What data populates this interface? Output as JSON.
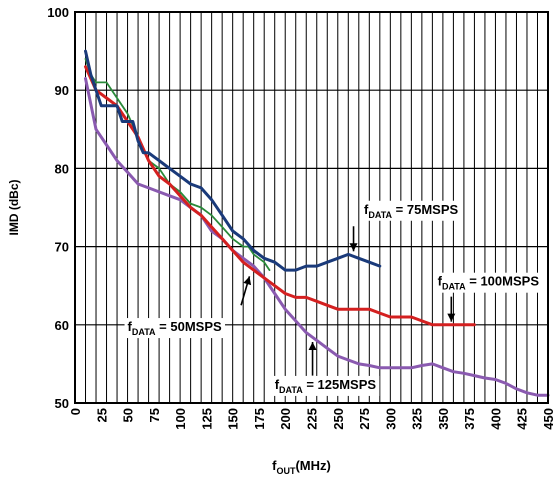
{
  "chart_data": {
    "type": "line",
    "xlabel": "f",
    "xlabel_sub": "OUT",
    "xlabel_unit": "(MHz)",
    "ylabel": "IMD (dBc)",
    "xlim": [
      0,
      450
    ],
    "ylim": [
      50,
      100
    ],
    "grid": true,
    "xticks": [
      "0",
      "25",
      "50",
      "75",
      "100",
      "125",
      "150",
      "175",
      "200",
      "225",
      "250",
      "275",
      "300",
      "325",
      "350",
      "375",
      "400",
      "425",
      "450"
    ],
    "yticks": [
      "50",
      "60",
      "70",
      "80",
      "90",
      "100"
    ],
    "series": [
      {
        "name": "fDATA = 75MSPS",
        "label_main": "f",
        "label_sub": "DATA",
        "label_rest": " = 75MSPS",
        "color": "#1a3a7a",
        "x": [
          10,
          15,
          20,
          25,
          30,
          35,
          40,
          45,
          50,
          55,
          60,
          65,
          70,
          75,
          80,
          85,
          90,
          100,
          110,
          120,
          130,
          140,
          150,
          160,
          170,
          180,
          190,
          200,
          210,
          220,
          230,
          240,
          250,
          260,
          270,
          280,
          290
        ],
        "y": [
          95,
          92,
          90,
          88,
          88,
          88,
          88,
          86,
          86,
          86,
          83.5,
          82,
          82,
          81.5,
          81,
          80.5,
          80,
          79,
          78,
          77.5,
          76,
          74,
          72,
          71,
          69.5,
          68.5,
          68,
          67,
          67,
          67.5,
          67.5,
          68,
          68.5,
          69,
          68.5,
          68,
          67.5
        ]
      },
      {
        "name": "fDATA = 100MSPS",
        "label_main": "f",
        "label_sub": "DATA",
        "label_rest": " = 100MSPS",
        "color": "#d42020",
        "x": [
          10,
          20,
          30,
          40,
          50,
          60,
          70,
          80,
          90,
          100,
          110,
          120,
          130,
          140,
          150,
          160,
          170,
          180,
          190,
          200,
          210,
          220,
          230,
          240,
          250,
          260,
          270,
          280,
          290,
          300,
          310,
          320,
          330,
          340,
          350,
          360,
          370,
          380
        ],
        "y": [
          93,
          90,
          89,
          88,
          86,
          84,
          81,
          79,
          78,
          76.5,
          75,
          74,
          72.5,
          71,
          69.5,
          68,
          67,
          66,
          65,
          64,
          63.5,
          63.5,
          63,
          62.5,
          62,
          62,
          62,
          62,
          61.5,
          61,
          61,
          61,
          60.5,
          60,
          60,
          60,
          60,
          60
        ]
      },
      {
        "name": "fDATA = 50MSPS",
        "label_main": "f",
        "label_sub": "DATA",
        "label_rest": " = 50MSPS",
        "color": "#2a8a3a",
        "x": [
          10,
          15,
          20,
          25,
          30,
          35,
          40,
          50,
          60,
          70,
          80,
          90,
          100,
          110,
          120,
          130,
          140,
          150,
          160,
          165,
          170,
          175,
          180,
          185
        ],
        "y": [
          94,
          92,
          91,
          91,
          91,
          90,
          89,
          87,
          84,
          81,
          80,
          78,
          77,
          75.5,
          75,
          74,
          72.5,
          71,
          70,
          70,
          69,
          68.5,
          68,
          67
        ]
      },
      {
        "name": "fDATA = 125MSPS",
        "label_main": "f",
        "label_sub": "DATA",
        "label_rest": " = 125MSPS",
        "color": "#8a5ab0",
        "x": [
          10,
          20,
          30,
          40,
          50,
          60,
          70,
          80,
          90,
          100,
          110,
          120,
          130,
          140,
          150,
          160,
          170,
          180,
          190,
          200,
          210,
          220,
          230,
          240,
          250,
          260,
          270,
          280,
          290,
          300,
          310,
          320,
          330,
          340,
          350,
          360,
          370,
          380,
          390,
          400,
          410,
          420,
          430,
          440,
          450
        ],
        "y": [
          91.5,
          85,
          83,
          81,
          79.5,
          78,
          77.5,
          77,
          76.5,
          76,
          75,
          74,
          72,
          71,
          69.5,
          68.5,
          67.5,
          66,
          64,
          62,
          60.5,
          59,
          58,
          57,
          56,
          55.5,
          55,
          54.8,
          54.5,
          54.5,
          54.5,
          54.5,
          54.8,
          55,
          54.5,
          54,
          53.8,
          53.5,
          53.2,
          53,
          52.5,
          51.8,
          51.3,
          51,
          51
        ]
      }
    ],
    "annotations": [
      {
        "series": 0,
        "text_x": 275,
        "text_y": 74.2,
        "arrow_from": [
          265,
          72.6
        ],
        "arrow_to": [
          265,
          69.4
        ]
      },
      {
        "series": 1,
        "text_x": 345,
        "text_y": 65,
        "arrow_from": [
          358,
          63.6
        ],
        "arrow_to": [
          358,
          60.4
        ]
      },
      {
        "series": 2,
        "text_x": 50,
        "text_y": 59.2,
        "arrow_from": [
          158,
          62.5
        ],
        "arrow_to": [
          166,
          66.2
        ]
      },
      {
        "series": 3,
        "text_x": 190,
        "text_y": 51.8,
        "arrow_from": [
          226,
          53.5
        ],
        "arrow_to": [
          226,
          57.8
        ]
      }
    ]
  }
}
